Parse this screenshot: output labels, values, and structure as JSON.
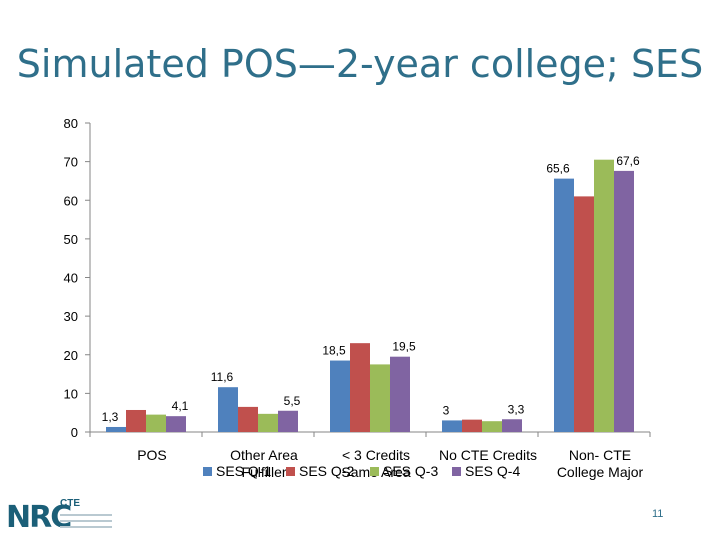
{
  "slide": {
    "title": "Simulated POS—2-year college; SES",
    "page_number": "11",
    "logo": {
      "main": "NRC",
      "sub": "CTE"
    }
  },
  "chart_data": {
    "type": "bar",
    "categories": [
      [
        "POS"
      ],
      [
        "Other Area",
        "Fulfiller"
      ],
      [
        "< 3 Credits",
        "Same Area"
      ],
      [
        "No CTE Credits"
      ],
      [
        "Non- CTE",
        "College Major"
      ]
    ],
    "series": [
      {
        "name": "SES Q-1",
        "color": "#4f81bd",
        "values": [
          1.3,
          11.6,
          18.5,
          3.0,
          65.6
        ]
      },
      {
        "name": "SES Q-2",
        "color": "#c0504d",
        "values": [
          5.7,
          6.5,
          23.0,
          3.2,
          61.0
        ]
      },
      {
        "name": "SES Q-3",
        "color": "#9bbb59",
        "values": [
          4.5,
          4.7,
          17.5,
          2.8,
          70.5
        ]
      },
      {
        "name": "SES Q-4",
        "color": "#8064a2",
        "values": [
          4.1,
          5.5,
          19.5,
          3.3,
          67.6
        ]
      }
    ],
    "data_labels": [
      {
        "series": 0,
        "category": 0,
        "text": "1,3"
      },
      {
        "series": 3,
        "category": 0,
        "text": "4,1"
      },
      {
        "series": 0,
        "category": 1,
        "text": "11,6"
      },
      {
        "series": 3,
        "category": 1,
        "text": "5,5"
      },
      {
        "series": 0,
        "category": 2,
        "text": "18,5"
      },
      {
        "series": 3,
        "category": 2,
        "text": "19,5"
      },
      {
        "series": 0,
        "category": 3,
        "text": "3"
      },
      {
        "series": 3,
        "category": 3,
        "text": "3,3"
      },
      {
        "series": 0,
        "category": 4,
        "text": "65,6"
      },
      {
        "series": 3,
        "category": 4,
        "text": "67,6"
      }
    ],
    "yticks": [
      0,
      10,
      20,
      30,
      40,
      50,
      60,
      70,
      80
    ],
    "ylim": [
      0,
      80
    ],
    "grid": false,
    "legend_position": "bottom",
    "xlabel": "",
    "ylabel": ""
  }
}
